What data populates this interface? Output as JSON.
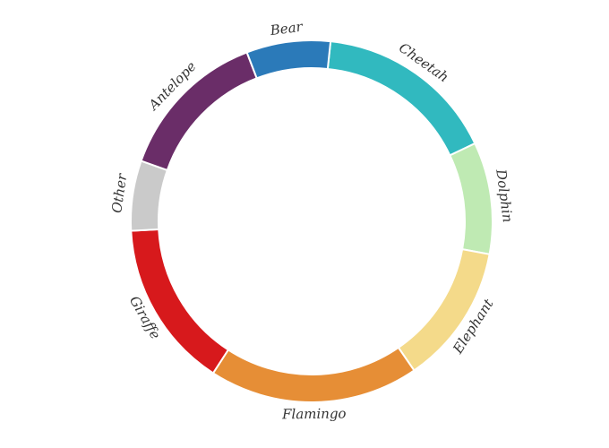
{
  "chart_data": {
    "type": "pie",
    "title": "",
    "slices": [
      {
        "label": "Cheetah",
        "value": 13,
        "color": "#31b9bf"
      },
      {
        "label": "Dolphin",
        "value": 8,
        "color": "#bfeab3"
      },
      {
        "label": "Elephant",
        "value": 10,
        "color": "#f4da8a"
      },
      {
        "label": "Flamingo",
        "value": 15,
        "color": "#e68e36"
      },
      {
        "label": "Giraffe",
        "value": 12,
        "color": "#d7191c"
      },
      {
        "label": "Other",
        "value": 5,
        "color": "#cacaca"
      },
      {
        "label": "Antelope",
        "value": 11,
        "color": "#6a2d68"
      },
      {
        "label": "Bear",
        "value": 6,
        "color": "#2b7ab9"
      }
    ],
    "donut": true,
    "legend": "none"
  }
}
